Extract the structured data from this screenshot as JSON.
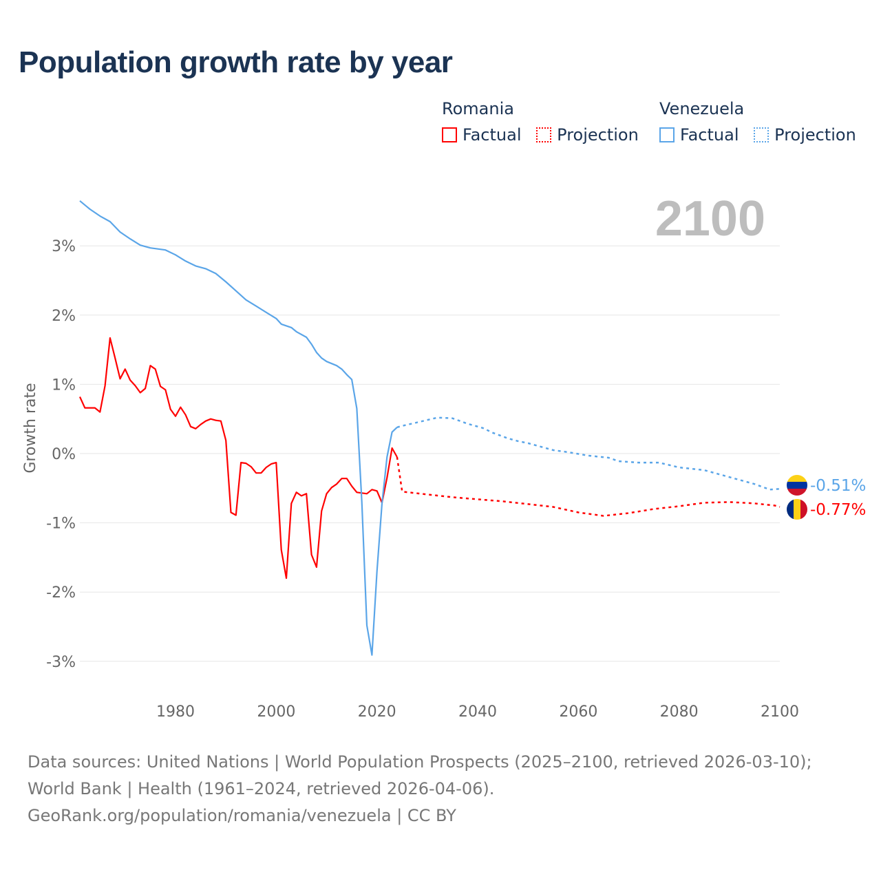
{
  "title": "Population growth rate by year",
  "legend": {
    "groups": [
      {
        "name": "Romania",
        "factual": "Factual",
        "projection": "Projection",
        "color": "#ff0000"
      },
      {
        "name": "Venezuela",
        "factual": "Factual",
        "projection": "Projection",
        "color": "#5aa5e8"
      }
    ]
  },
  "footer": {
    "sources": "Data sources: United Nations | World Population Prospects (2025–2100, retrieved 2026-03-10); World Bank | Health (1961–2024, retrieved 2026-04-06).",
    "credit": "GeoRank.org/population/romania/venezuela | CC BY"
  },
  "chart_data": {
    "type": "line",
    "title": "Population growth rate by year",
    "ylabel": "Growth rate",
    "xlabel": "",
    "year_label": "2100",
    "xlim": [
      1961,
      2100
    ],
    "ylim": [
      -3.5,
      3.7
    ],
    "x_ticks": [
      1980,
      2000,
      2020,
      2040,
      2060,
      2080,
      2100
    ],
    "y_ticks": [
      3,
      2,
      1,
      0,
      -1,
      -2,
      -3
    ],
    "y_tick_labels": [
      "3%",
      "2%",
      "1%",
      "0%",
      "-1%",
      "-2%",
      "-3%"
    ],
    "grid": true,
    "series": [
      {
        "name": "Romania",
        "color": "#ff0000",
        "end_label": "-0.77%",
        "flag": "romania-flag",
        "factual": {
          "x": [
            1961,
            1962,
            1963,
            1964,
            1965,
            1966,
            1967,
            1968,
            1969,
            1970,
            1971,
            1972,
            1973,
            1974,
            1975,
            1976,
            1977,
            1978,
            1979,
            1980,
            1981,
            1982,
            1983,
            1984,
            1985,
            1986,
            1987,
            1988,
            1989,
            1990,
            1991,
            1992,
            1993,
            1994,
            1995,
            1996,
            1997,
            1998,
            1999,
            2000,
            2001,
            2002,
            2003,
            2004,
            2005,
            2006,
            2007,
            2008,
            2009,
            2010,
            2011,
            2012,
            2013,
            2014,
            2015,
            2016,
            2017,
            2018,
            2019,
            2020,
            2021,
            2022,
            2023,
            2024
          ],
          "y": [
            0.82,
            0.66,
            0.66,
            0.66,
            0.6,
            0.98,
            1.67,
            1.38,
            1.08,
            1.22,
            1.06,
            0.98,
            0.88,
            0.94,
            1.27,
            1.22,
            0.97,
            0.92,
            0.64,
            0.54,
            0.67,
            0.56,
            0.39,
            0.36,
            0.42,
            0.47,
            0.5,
            0.48,
            0.47,
            0.19,
            -0.85,
            -0.89,
            -0.13,
            -0.14,
            -0.19,
            -0.28,
            -0.28,
            -0.2,
            -0.15,
            -0.13,
            -1.39,
            -1.8,
            -0.72,
            -0.56,
            -0.61,
            -0.58,
            -1.46,
            -1.64,
            -0.83,
            -0.58,
            -0.49,
            -0.44,
            -0.36,
            -0.36,
            -0.47,
            -0.56,
            -0.57,
            -0.58,
            -0.52,
            -0.54,
            -0.71,
            -0.35,
            0.08,
            -0.05
          ]
        },
        "projection": {
          "x": [
            2024,
            2025,
            2030,
            2035,
            2040,
            2045,
            2050,
            2055,
            2060,
            2065,
            2070,
            2075,
            2080,
            2085,
            2090,
            2095,
            2099,
            2100
          ],
          "y": [
            -0.05,
            -0.55,
            -0.59,
            -0.63,
            -0.66,
            -0.69,
            -0.73,
            -0.77,
            -0.85,
            -0.9,
            -0.86,
            -0.8,
            -0.76,
            -0.71,
            -0.7,
            -0.72,
            -0.75,
            -0.77
          ]
        }
      },
      {
        "name": "Venezuela",
        "color": "#5aa5e8",
        "end_label": "-0.51%",
        "flag": "venezuela-flag",
        "factual": {
          "x": [
            1961,
            1963,
            1965,
            1967,
            1969,
            1971,
            1973,
            1975,
            1978,
            1980,
            1982,
            1984,
            1986,
            1988,
            1990,
            1992,
            1994,
            1996,
            1998,
            2000,
            2001,
            2003,
            2004,
            2006,
            2007,
            2008,
            2009,
            2010,
            2012,
            2013,
            2014,
            2015,
            2016,
            2017,
            2018,
            2019,
            2020,
            2021,
            2022,
            2023,
            2024
          ],
          "y": [
            3.65,
            3.53,
            3.43,
            3.35,
            3.2,
            3.1,
            3.01,
            2.97,
            2.94,
            2.87,
            2.78,
            2.71,
            2.67,
            2.6,
            2.48,
            2.35,
            2.22,
            2.13,
            2.04,
            1.95,
            1.87,
            1.82,
            1.76,
            1.68,
            1.58,
            1.46,
            1.38,
            1.33,
            1.27,
            1.22,
            1.14,
            1.07,
            0.65,
            -0.7,
            -2.48,
            -2.91,
            -1.7,
            -0.72,
            -0.05,
            0.31,
            0.38
          ]
        },
        "projection": {
          "x": [
            2024,
            2025,
            2028,
            2032,
            2035,
            2038,
            2041,
            2043,
            2046,
            2048,
            2050,
            2055,
            2058,
            2062,
            2066,
            2068,
            2072,
            2076,
            2080,
            2085,
            2090,
            2095,
            2098,
            2100
          ],
          "y": [
            0.38,
            0.4,
            0.45,
            0.52,
            0.51,
            0.43,
            0.37,
            0.3,
            0.22,
            0.18,
            0.15,
            0.05,
            0.02,
            -0.03,
            -0.06,
            -0.11,
            -0.13,
            -0.13,
            -0.2,
            -0.24,
            -0.34,
            -0.44,
            -0.52,
            -0.51
          ]
        }
      }
    ]
  }
}
